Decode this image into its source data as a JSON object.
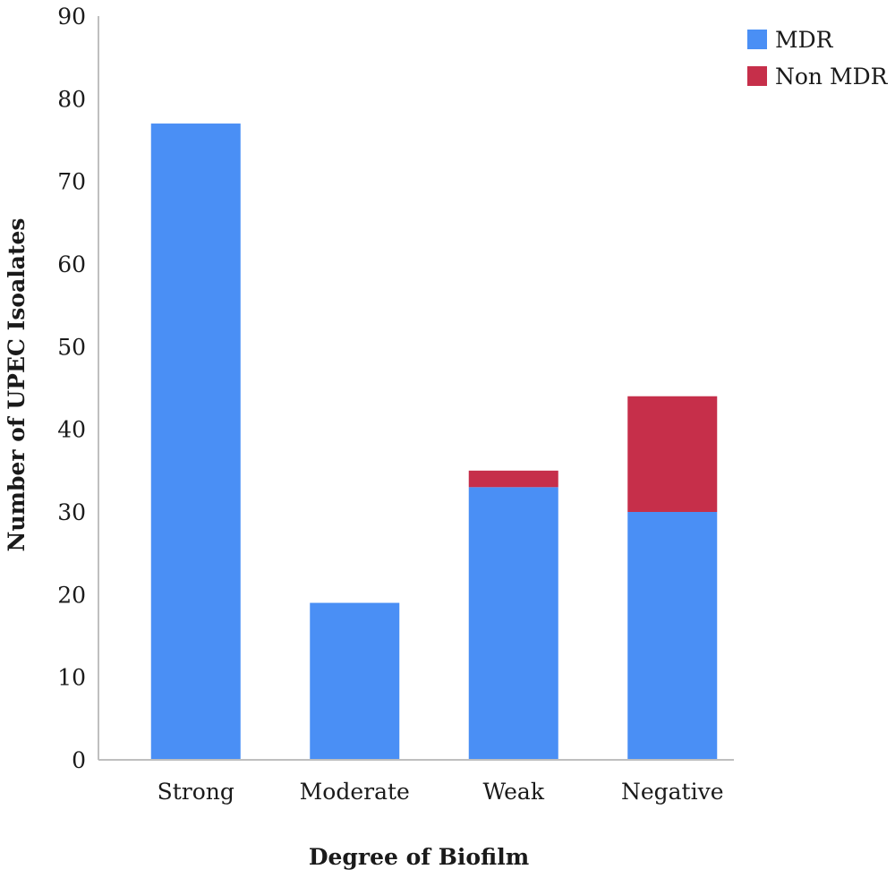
{
  "chart_data": {
    "type": "bar",
    "stacked": true,
    "title": "",
    "xlabel": "Degree of Biofilm",
    "ylabel": "Number of UPEC Isoalates",
    "categories": [
      "Strong",
      "Moderate",
      "Weak",
      "Negative"
    ],
    "series": [
      {
        "name": "MDR",
        "color": "#4a8ff5",
        "values": [
          77,
          19,
          33,
          30
        ]
      },
      {
        "name": "Non MDR",
        "color": "#c62f4a",
        "values": [
          0,
          0,
          2,
          14
        ]
      }
    ],
    "ylim": [
      0,
      90
    ],
    "yticks": [
      0,
      10,
      20,
      30,
      40,
      50,
      60,
      70,
      80,
      90
    ],
    "grid": false,
    "legend_position": "top-right"
  }
}
